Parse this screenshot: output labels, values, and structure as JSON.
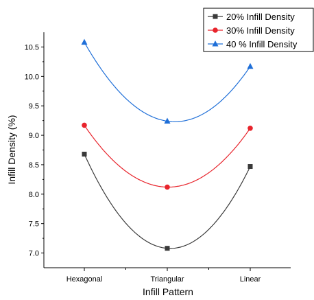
{
  "chart_data": {
    "type": "line",
    "xlabel": "Infill Pattern",
    "ylabel": "Infill Density (%)",
    "categories": [
      "Hexagonal",
      "Triangular",
      "Linear"
    ],
    "ylim": [
      6.75,
      10.75
    ],
    "yticks": [
      "7.0",
      "7.5",
      "8.0",
      "8.5",
      "9.0",
      "9.5",
      "10.0",
      "10.5"
    ],
    "grid": false,
    "legend_position": "top-right",
    "smooth": true,
    "series": [
      {
        "name": "20% Infill Density",
        "values": [
          8.68,
          7.08,
          8.47
        ],
        "color": "#3a3a3a",
        "marker": "square"
      },
      {
        "name": "30% Infill Density",
        "values": [
          9.17,
          8.12,
          9.12
        ],
        "color": "#e8242c",
        "marker": "circle"
      },
      {
        "name": "40 % Infill Density",
        "values": [
          10.58,
          9.24,
          10.17
        ],
        "color": "#1f6fd8",
        "marker": "triangle"
      }
    ]
  }
}
